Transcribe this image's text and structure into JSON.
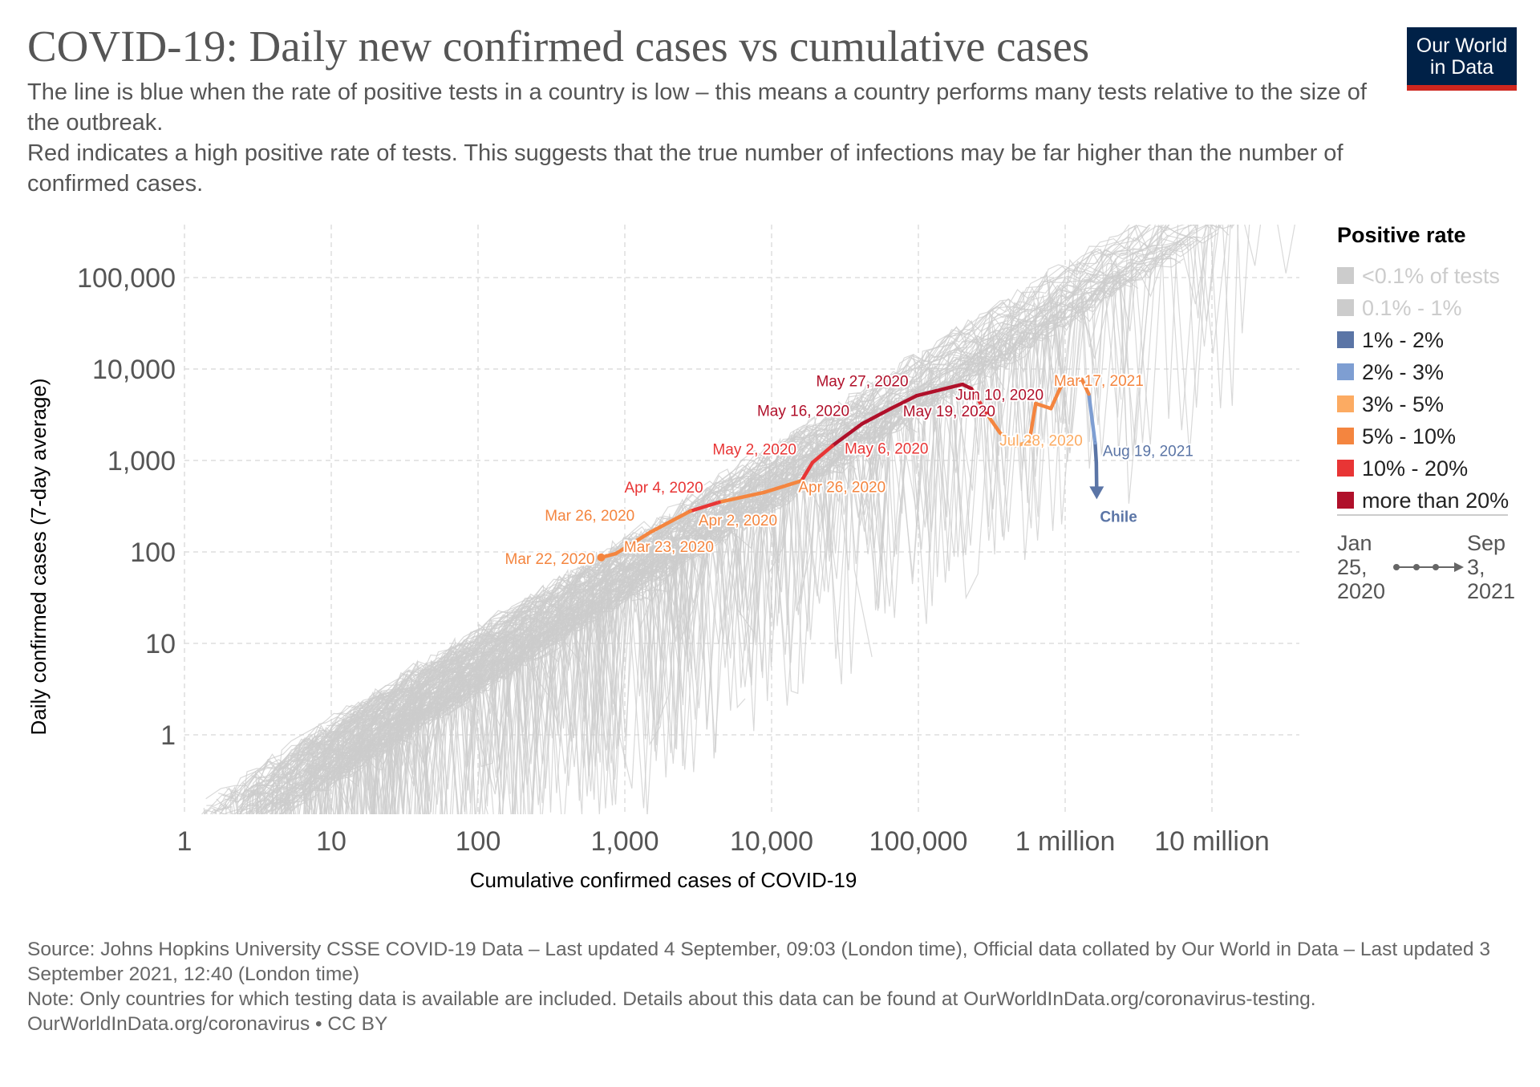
{
  "header": {
    "title": "COVID-19: Daily new confirmed cases vs cumulative cases",
    "subtitle_1": "The line is blue when the rate of positive tests in a country is low – this means a country performs many tests relative to the size of the outbreak.",
    "subtitle_2": " Red indicates a high positive rate of tests. This suggests that the true number of infections may be far higher than the number of confirmed cases.",
    "logo_line1": "Our World",
    "logo_line2": "in Data"
  },
  "footer": {
    "source": "Source: Johns Hopkins University CSSE COVID-19 Data – Last updated 4 September, 09:03 (London time), Official data collated by Our World in Data – Last updated 3 September 2021, 12:40 (London time)",
    "note": "Note: Only countries for which testing data is available are included. Details about this data can be found at OurWorldInData.org/coronavirus-testing.",
    "credit": "OurWorldInData.org/coronavirus • CC BY"
  },
  "chart_data": {
    "type": "line",
    "xlabel": "Cumulative confirmed cases of COVID-19",
    "ylabel": "Daily confirmed cases (7-day average)",
    "x_scale": "log",
    "y_scale": "log",
    "xlim": [
      1,
      50000000
    ],
    "ylim": [
      0.15,
      400000
    ],
    "grid": true,
    "x_ticks": [
      {
        "value": 1,
        "label": "1"
      },
      {
        "value": 10,
        "label": "10"
      },
      {
        "value": 100,
        "label": "100"
      },
      {
        "value": 1000,
        "label": "1,000"
      },
      {
        "value": 10000,
        "label": "10,000"
      },
      {
        "value": 100000,
        "label": "100,000"
      },
      {
        "value": 1000000,
        "label": "1 million"
      },
      {
        "value": 10000000,
        "label": "10 million"
      }
    ],
    "y_ticks": [
      {
        "value": 1,
        "label": "1"
      },
      {
        "value": 10,
        "label": "10"
      },
      {
        "value": 100,
        "label": "100"
      },
      {
        "value": 1000,
        "label": "1,000"
      },
      {
        "value": 10000,
        "label": "10,000"
      },
      {
        "value": 100000,
        "label": "100,000"
      }
    ],
    "legend": {
      "title": "Positive rate",
      "placement": "right",
      "items": [
        {
          "label": "<0.1% of tests",
          "color": "#cccccc",
          "faded": true
        },
        {
          "label": "0.1% - 1%",
          "color": "#cccccc",
          "faded": true
        },
        {
          "label": "1% - 2%",
          "color": "#5b75a6"
        },
        {
          "label": "2% - 3%",
          "color": "#7e9ed2"
        },
        {
          "label": "3% - 5%",
          "color": "#fcab62"
        },
        {
          "label": "5% - 10%",
          "color": "#f4853f"
        },
        {
          "label": "10% - 20%",
          "color": "#e83535"
        },
        {
          "label": "more than 20%",
          "color": "#b0102a"
        }
      ]
    },
    "timeline": {
      "start_line1": "Jan",
      "start_line2": "25,",
      "start_line3": "2020",
      "end_line1": "Sep",
      "end_line2": "3,",
      "end_line3": "2021"
    },
    "highlighted_series": {
      "name": "Chile",
      "color": "#5b75a6",
      "points": [
        {
          "x": 690,
          "y": 87,
          "color": "#f4853f",
          "label": "Mar 22, 2020"
        },
        {
          "x": 870,
          "y": 96,
          "color": "#f4853f",
          "label": "Mar 23, 2020"
        },
        {
          "x": 1500,
          "y": 165,
          "color": "#f4853f",
          "label": "Mar 26, 2020"
        },
        {
          "x": 2800,
          "y": 280,
          "color": "#f4853f",
          "label": "Apr 2, 2020"
        },
        {
          "x": 4400,
          "y": 350,
          "color": "#e83535",
          "label": "Apr 4, 2020"
        },
        {
          "x": 9000,
          "y": 450,
          "color": "#f4853f"
        },
        {
          "x": 16000,
          "y": 600,
          "color": "#f4853f",
          "label": "Apr 26, 2020"
        },
        {
          "x": 19000,
          "y": 950,
          "color": "#e83535",
          "label": "May 2, 2020"
        },
        {
          "x": 26000,
          "y": 1450,
          "color": "#e83535",
          "label": "May 6, 2020"
        },
        {
          "x": 41000,
          "y": 2500,
          "color": "#b0102a",
          "label": "May 16, 2020"
        },
        {
          "x": 65000,
          "y": 3700,
          "color": "#b0102a",
          "label": "May 19, 2020"
        },
        {
          "x": 97000,
          "y": 5100,
          "color": "#b0102a",
          "label": "May 27, 2020"
        },
        {
          "x": 200000,
          "y": 6800,
          "color": "#b0102a"
        },
        {
          "x": 230000,
          "y": 6100,
          "color": "#b0102a",
          "label": "Jun 10, 2020"
        },
        {
          "x": 290000,
          "y": 3300,
          "color": "#e83535"
        },
        {
          "x": 360000,
          "y": 2000,
          "color": "#f4853f"
        },
        {
          "x": 460000,
          "y": 1450,
          "color": "#fcab62",
          "label": "Jul 28, 2020"
        },
        {
          "x": 570000,
          "y": 1600,
          "color": "#fcab62"
        },
        {
          "x": 630000,
          "y": 4200,
          "color": "#f4853f"
        },
        {
          "x": 800000,
          "y": 3700,
          "color": "#f4853f"
        },
        {
          "x": 950000,
          "y": 6800,
          "color": "#f4853f"
        },
        {
          "x": 1300000,
          "y": 7700,
          "color": "#f4853f",
          "label": "Mar 17, 2021"
        },
        {
          "x": 1450000,
          "y": 5300,
          "color": "#f4853f"
        },
        {
          "x": 1600000,
          "y": 1550,
          "color": "#7e9ed2"
        },
        {
          "x": 1630000,
          "y": 950,
          "color": "#5b75a6",
          "label": "Aug 19, 2021"
        },
        {
          "x": 1640000,
          "y": 480,
          "color": "#5b75a6"
        }
      ]
    },
    "background_series_color": "#cccccc"
  }
}
